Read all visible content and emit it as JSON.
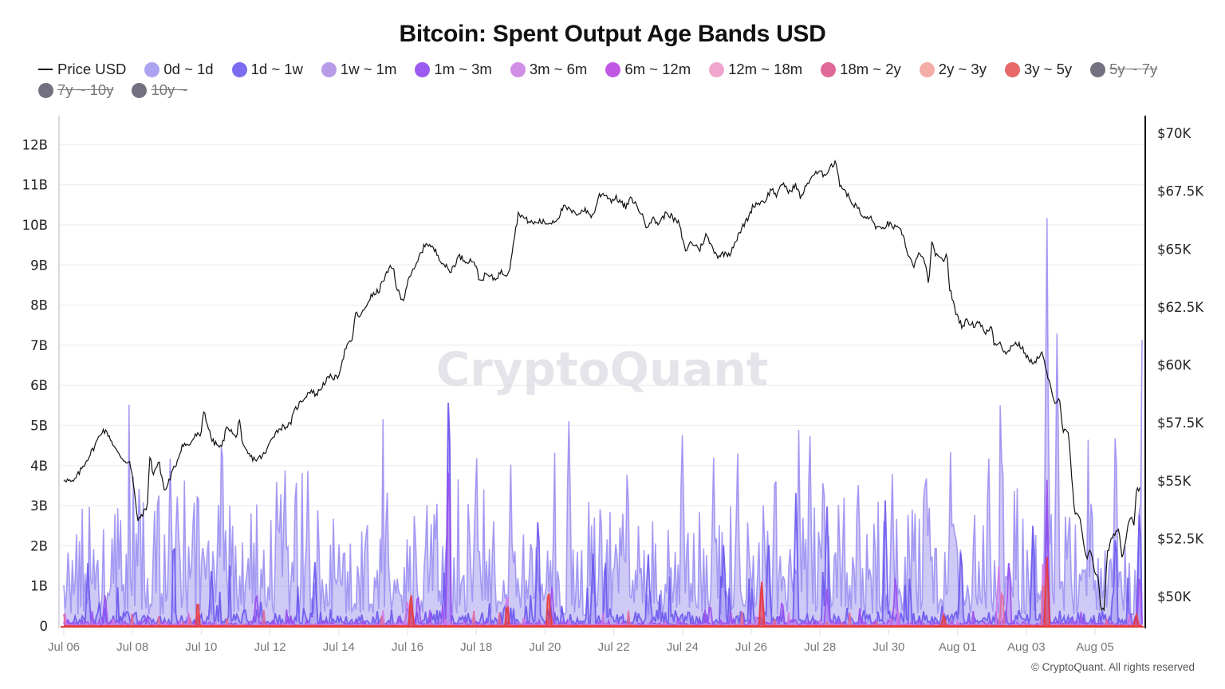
{
  "title": "Bitcoin: Spent Output Age Bands USD",
  "watermark": "CryptoQuant",
  "copyright": "© CryptoQuant. All rights reserved",
  "legend": [
    {
      "label": "Price USD",
      "type": "line",
      "color": "#111111",
      "hidden": false
    },
    {
      "label": "0d ~ 1d",
      "type": "dot",
      "color": "#aca3f0",
      "hidden": false
    },
    {
      "label": "1d ~ 1w",
      "type": "dot",
      "color": "#7b6cf0",
      "hidden": false
    },
    {
      "label": "1w ~ 1m",
      "type": "dot",
      "color": "#b79be8",
      "hidden": false
    },
    {
      "label": "1m ~ 3m",
      "type": "dot",
      "color": "#9d5af0",
      "hidden": false
    },
    {
      "label": "3m ~ 6m",
      "type": "dot",
      "color": "#d08ee4",
      "hidden": false
    },
    {
      "label": "6m ~ 12m",
      "type": "dot",
      "color": "#c158e4",
      "hidden": false
    },
    {
      "label": "12m ~ 18m",
      "type": "dot",
      "color": "#f0a6cc",
      "hidden": false
    },
    {
      "label": "18m ~ 2y",
      "type": "dot",
      "color": "#e06898",
      "hidden": false
    },
    {
      "label": "2y ~ 3y",
      "type": "dot",
      "color": "#f3aca6",
      "hidden": false
    },
    {
      "label": "3y ~ 5y",
      "type": "dot",
      "color": "#e66868",
      "hidden": false
    },
    {
      "label": "5y ~ 7y",
      "type": "dot",
      "color": "#73717f",
      "hidden": true
    },
    {
      "label": "7y ~ 10y",
      "type": "dot",
      "color": "#73717f",
      "hidden": true
    },
    {
      "label": "10y ~",
      "type": "dot",
      "color": "#73717f",
      "hidden": true
    }
  ],
  "chart_data": {
    "type": "area",
    "title": "Bitcoin: Spent Output Age Bands USD",
    "xlabel": "",
    "ylabel": "Spent Output Value (USD)",
    "y2label": "Price USD",
    "x_ticks": [
      "Jul 06",
      "Jul 08",
      "Jul 10",
      "Jul 12",
      "Jul 14",
      "Jul 16",
      "Jul 18",
      "Jul 20",
      "Jul 22",
      "Jul 24",
      "Jul 26",
      "Jul 28",
      "Jul 30",
      "Aug 01",
      "Aug 03",
      "Aug 05"
    ],
    "y_ticks": [
      "0",
      "1B",
      "2B",
      "3B",
      "4B",
      "5B",
      "6B",
      "7B",
      "8B",
      "9B",
      "10B",
      "11B",
      "12B"
    ],
    "y2_ticks": [
      "$50K",
      "$52.5K",
      "$55K",
      "$57.5K",
      "$60K",
      "$62.5K",
      "$65K",
      "$67.5K",
      "$70K"
    ],
    "ylim": [
      0,
      12700000000
    ],
    "y2lim": [
      48600,
      70800
    ],
    "grid": true,
    "legend_position": "top",
    "resolution": "hourly",
    "x_range_days": [
      0,
      31.4
    ],
    "price_anchors_day_value": [
      [
        0,
        55100
      ],
      [
        0.3,
        54900
      ],
      [
        0.5,
        55300
      ],
      [
        1.0,
        56400
      ],
      [
        1.3,
        57200
      ],
      [
        1.5,
        57000
      ],
      [
        1.8,
        56200
      ],
      [
        2.1,
        55800
      ],
      [
        2.2,
        55900
      ],
      [
        2.3,
        55200
      ],
      [
        2.5,
        53200
      ],
      [
        2.6,
        53500
      ],
      [
        2.8,
        53800
      ],
      [
        2.9,
        56100
      ],
      [
        3.0,
        55300
      ],
      [
        3.2,
        55800
      ],
      [
        3.4,
        54500
      ],
      [
        3.6,
        55200
      ],
      [
        3.8,
        55800
      ],
      [
        4.0,
        56600
      ],
      [
        4.2,
        56500
      ],
      [
        4.4,
        56900
      ],
      [
        4.5,
        57000
      ],
      [
        4.6,
        56800
      ],
      [
        4.7,
        58100
      ],
      [
        4.9,
        57100
      ],
      [
        5.0,
        56700
      ],
      [
        5.3,
        56400
      ],
      [
        5.5,
        57400
      ],
      [
        5.8,
        56800
      ],
      [
        5.9,
        57800
      ],
      [
        6.0,
        56500
      ],
      [
        6.3,
        56000
      ],
      [
        6.5,
        55900
      ],
      [
        6.8,
        56200
      ],
      [
        7.0,
        56900
      ],
      [
        7.3,
        57300
      ],
      [
        7.6,
        57400
      ],
      [
        7.8,
        58100
      ],
      [
        8.1,
        58600
      ],
      [
        8.3,
        58900
      ],
      [
        8.5,
        58700
      ],
      [
        8.8,
        59300
      ],
      [
        9.0,
        59500
      ],
      [
        9.2,
        59400
      ],
      [
        9.5,
        60800
      ],
      [
        9.7,
        61000
      ],
      [
        9.8,
        62200
      ],
      [
        10.0,
        62100
      ],
      [
        10.3,
        62900
      ],
      [
        10.6,
        63200
      ],
      [
        10.8,
        63800
      ],
      [
        11.0,
        64200
      ],
      [
        11.1,
        64100
      ],
      [
        11.2,
        63300
      ],
      [
        11.4,
        62700
      ],
      [
        11.6,
        63800
      ],
      [
        11.8,
        64100
      ],
      [
        12.0,
        64800
      ],
      [
        12.2,
        65300
      ],
      [
        12.5,
        64900
      ],
      [
        12.7,
        64500
      ],
      [
        13.0,
        64000
      ],
      [
        13.3,
        64700
      ],
      [
        13.5,
        64500
      ],
      [
        13.8,
        64500
      ],
      [
        14.0,
        63600
      ],
      [
        14.2,
        63900
      ],
      [
        14.5,
        63700
      ],
      [
        14.7,
        64000
      ],
      [
        14.9,
        63900
      ],
      [
        15.0,
        64200
      ],
      [
        15.1,
        65100
      ],
      [
        15.3,
        66600
      ],
      [
        15.5,
        66300
      ],
      [
        15.8,
        66100
      ],
      [
        16.0,
        66200
      ],
      [
        16.3,
        66100
      ],
      [
        16.6,
        66300
      ],
      [
        16.8,
        66800
      ],
      [
        17.0,
        66700
      ],
      [
        17.2,
        66500
      ],
      [
        17.5,
        66700
      ],
      [
        17.8,
        66400
      ],
      [
        18.0,
        67300
      ],
      [
        18.2,
        67400
      ],
      [
        18.4,
        67100
      ],
      [
        18.6,
        67200
      ],
      [
        18.9,
        66800
      ],
      [
        19.1,
        67200
      ],
      [
        19.4,
        66600
      ],
      [
        19.6,
        66000
      ],
      [
        19.8,
        66300
      ],
      [
        20.0,
        66100
      ],
      [
        20.3,
        66600
      ],
      [
        20.5,
        66300
      ],
      [
        20.7,
        66100
      ],
      [
        20.9,
        64900
      ],
      [
        21.1,
        65300
      ],
      [
        21.4,
        65000
      ],
      [
        21.6,
        65600
      ],
      [
        21.8,
        65100
      ],
      [
        22.0,
        64700
      ],
      [
        22.2,
        64800
      ],
      [
        22.4,
        64800
      ],
      [
        22.5,
        65100
      ],
      [
        22.7,
        65600
      ],
      [
        22.9,
        66100
      ],
      [
        23.0,
        66300
      ],
      [
        23.2,
        66900
      ],
      [
        23.4,
        67000
      ],
      [
        23.6,
        67100
      ],
      [
        23.8,
        67600
      ],
      [
        24.0,
        67300
      ],
      [
        24.2,
        67900
      ],
      [
        24.4,
        67400
      ],
      [
        24.6,
        67800
      ],
      [
        24.8,
        67200
      ],
      [
        25.0,
        67800
      ],
      [
        25.2,
        68200
      ],
      [
        25.4,
        68300
      ],
      [
        25.6,
        68200
      ],
      [
        25.8,
        68600
      ],
      [
        26.0,
        68700
      ],
      [
        26.1,
        67800
      ],
      [
        26.3,
        67500
      ],
      [
        26.5,
        67000
      ],
      [
        26.7,
        66800
      ],
      [
        26.9,
        66300
      ],
      [
        27.1,
        66400
      ],
      [
        27.3,
        66000
      ],
      [
        27.5,
        65800
      ],
      [
        27.7,
        66100
      ],
      [
        28.0,
        65900
      ],
      [
        28.2,
        65700
      ],
      [
        28.4,
        64800
      ],
      [
        28.6,
        64200
      ],
      [
        28.8,
        64900
      ],
      [
        29.0,
        64200
      ],
      [
        29.1,
        63500
      ],
      [
        29.2,
        65200
      ],
      [
        29.4,
        64600
      ],
      [
        29.6,
        64500
      ],
      [
        29.7,
        64900
      ],
      [
        29.8,
        63300
      ],
      [
        30.0,
        62300
      ],
      [
        30.2,
        61700
      ],
      [
        30.4,
        61900
      ],
      [
        30.6,
        61700
      ],
      [
        30.8,
        61900
      ],
      [
        31.0,
        61300
      ],
      [
        31.2,
        61700
      ],
      [
        31.3,
        60900
      ],
      [
        31.5,
        61000
      ],
      [
        31.7,
        60400
      ],
      [
        31.9,
        60900
      ],
      [
        32.1,
        60900
      ],
      [
        32.3,
        60600
      ],
      [
        32.5,
        60100
      ],
      [
        32.7,
        60200
      ],
      [
        32.9,
        60500
      ],
      [
        33.1,
        59500
      ],
      [
        33.3,
        58400
      ],
      [
        33.5,
        58600
      ],
      [
        33.6,
        57200
      ],
      [
        33.8,
        57000
      ],
      [
        34.0,
        53600
      ],
      [
        34.2,
        53300
      ],
      [
        34.4,
        51600
      ],
      [
        34.5,
        52100
      ],
      [
        34.7,
        51000
      ],
      [
        34.8,
        50900
      ],
      [
        34.9,
        49300
      ],
      [
        35.0,
        49500
      ],
      [
        35.1,
        51800
      ],
      [
        35.3,
        52700
      ],
      [
        35.5,
        52900
      ],
      [
        35.6,
        51600
      ],
      [
        35.8,
        53100
      ],
      [
        35.9,
        53600
      ],
      [
        36.0,
        53100
      ],
      [
        36.1,
        54800
      ],
      [
        36.2,
        54600
      ]
    ],
    "series": [
      {
        "name": "0d ~ 1d",
        "color": "#8e80f0",
        "fill": "rgba(148,135,236,0.45)",
        "base_B": 1.1,
        "spikes_day_B": [
          [
            2.2,
            4.0
          ],
          [
            3.1,
            4.4
          ],
          [
            3.9,
            4.2
          ],
          [
            4.6,
            5.7
          ],
          [
            6.2,
            4.0
          ],
          [
            7.1,
            3.9
          ],
          [
            9.4,
            3.8
          ],
          [
            11.2,
            6.5
          ],
          [
            12.0,
            4.8
          ],
          [
            13.0,
            4.1
          ],
          [
            14.7,
            5.5
          ],
          [
            16.4,
            4.5
          ],
          [
            18.0,
            5.0
          ],
          [
            18.9,
            4.4
          ],
          [
            19.6,
            4.6
          ],
          [
            20.7,
            4.7
          ],
          [
            21.7,
            5.4
          ],
          [
            22.1,
            4.5
          ],
          [
            23.1,
            4.2
          ],
          [
            24.1,
            4.0
          ],
          [
            25.1,
            3.9
          ],
          [
            25.8,
            4.5
          ],
          [
            26.9,
            4.8
          ],
          [
            27.3,
            5.2
          ],
          [
            28.6,
            10.6
          ],
          [
            28.9,
            8.0
          ],
          [
            29.9,
            3.8
          ],
          [
            30.6,
            5.7
          ],
          [
            31.4,
            11.2
          ],
          [
            31.6,
            9.5
          ],
          [
            33.4,
            5.1
          ],
          [
            33.9,
            4.6
          ],
          [
            35.2,
            4.6
          ]
        ]
      },
      {
        "name": "1d ~ 1w",
        "color": "#6a56ee",
        "fill": "rgba(106,86,238,0.25)",
        "base_B": 0.15,
        "spikes_day_B": [
          [
            0.7,
            1.6
          ],
          [
            3.2,
            2.5
          ],
          [
            4.3,
            1.5
          ],
          [
            7.3,
            1.7
          ],
          [
            11.2,
            6.7
          ],
          [
            13.8,
            3.1
          ],
          [
            15.4,
            1.9
          ],
          [
            17.0,
            1.9
          ],
          [
            19.2,
            2.2
          ],
          [
            20.5,
            2.4
          ],
          [
            21.3,
            3.4
          ],
          [
            22.2,
            3.2
          ],
          [
            23.9,
            3.2
          ],
          [
            26.1,
            2.2
          ],
          [
            28.2,
            2.8
          ],
          [
            28.6,
            3.0
          ],
          [
            30.6,
            2.6
          ],
          [
            31.3,
            3.3
          ],
          [
            33.9,
            1.6
          ],
          [
            34.4,
            2.4
          ]
        ]
      },
      {
        "name": "1m ~ 3m",
        "color": "#9b4ff0",
        "fill": "rgba(155,79,240,0.25)",
        "base_B": 0.05,
        "spikes_day_B": [
          [
            1.2,
            0.8
          ],
          [
            5.6,
            0.9
          ],
          [
            10.3,
            0.9
          ],
          [
            11.2,
            4.6
          ],
          [
            14.2,
            1.0
          ],
          [
            18.8,
            0.6
          ],
          [
            20.9,
            0.7
          ],
          [
            22.2,
            1.0
          ],
          [
            24.2,
            1.4
          ],
          [
            27.5,
            1.8
          ],
          [
            28.6,
            3.8
          ],
          [
            31.3,
            1.4
          ],
          [
            33.1,
            1.3
          ]
        ]
      },
      {
        "name": "3m ~ 6m",
        "color": "#d27ae6",
        "fill": "rgba(210,122,230,0.25)",
        "base_B": 0.02,
        "spikes_day_B": [
          [
            3.9,
            0.4
          ],
          [
            10.0,
            0.7
          ],
          [
            12.9,
            0.9
          ],
          [
            20.3,
            1.2
          ],
          [
            27.2,
            1.5
          ],
          [
            28.5,
            2.0
          ],
          [
            32.5,
            0.6
          ],
          [
            35.0,
            0.7
          ]
        ]
      },
      {
        "name": "12m ~ 18m",
        "color": "#e06898",
        "fill": "rgba(224,104,152,0.3)",
        "base_B": 0.01,
        "spikes_day_B": [
          [
            3.9,
            0.4
          ],
          [
            10.1,
            0.6
          ],
          [
            12.9,
            0.6
          ],
          [
            20.3,
            1.0
          ],
          [
            27.3,
            1.0
          ],
          [
            28.5,
            1.3
          ],
          [
            31.8,
            0.2
          ],
          [
            35.0,
            0.4
          ]
        ]
      },
      {
        "name": "3y ~ 5y",
        "color": "#e8383c",
        "fill": "rgba(232,56,60,0.55)",
        "base_B": 0.0,
        "spikes_day_B": [
          [
            3.9,
            0.7
          ],
          [
            10.1,
            0.9
          ],
          [
            12.9,
            0.6
          ],
          [
            14.1,
            1.0
          ],
          [
            20.3,
            1.2
          ],
          [
            25.6,
            0.3
          ],
          [
            28.6,
            1.8
          ],
          [
            31.2,
            0.3
          ],
          [
            35.1,
            0.3
          ]
        ]
      }
    ]
  }
}
